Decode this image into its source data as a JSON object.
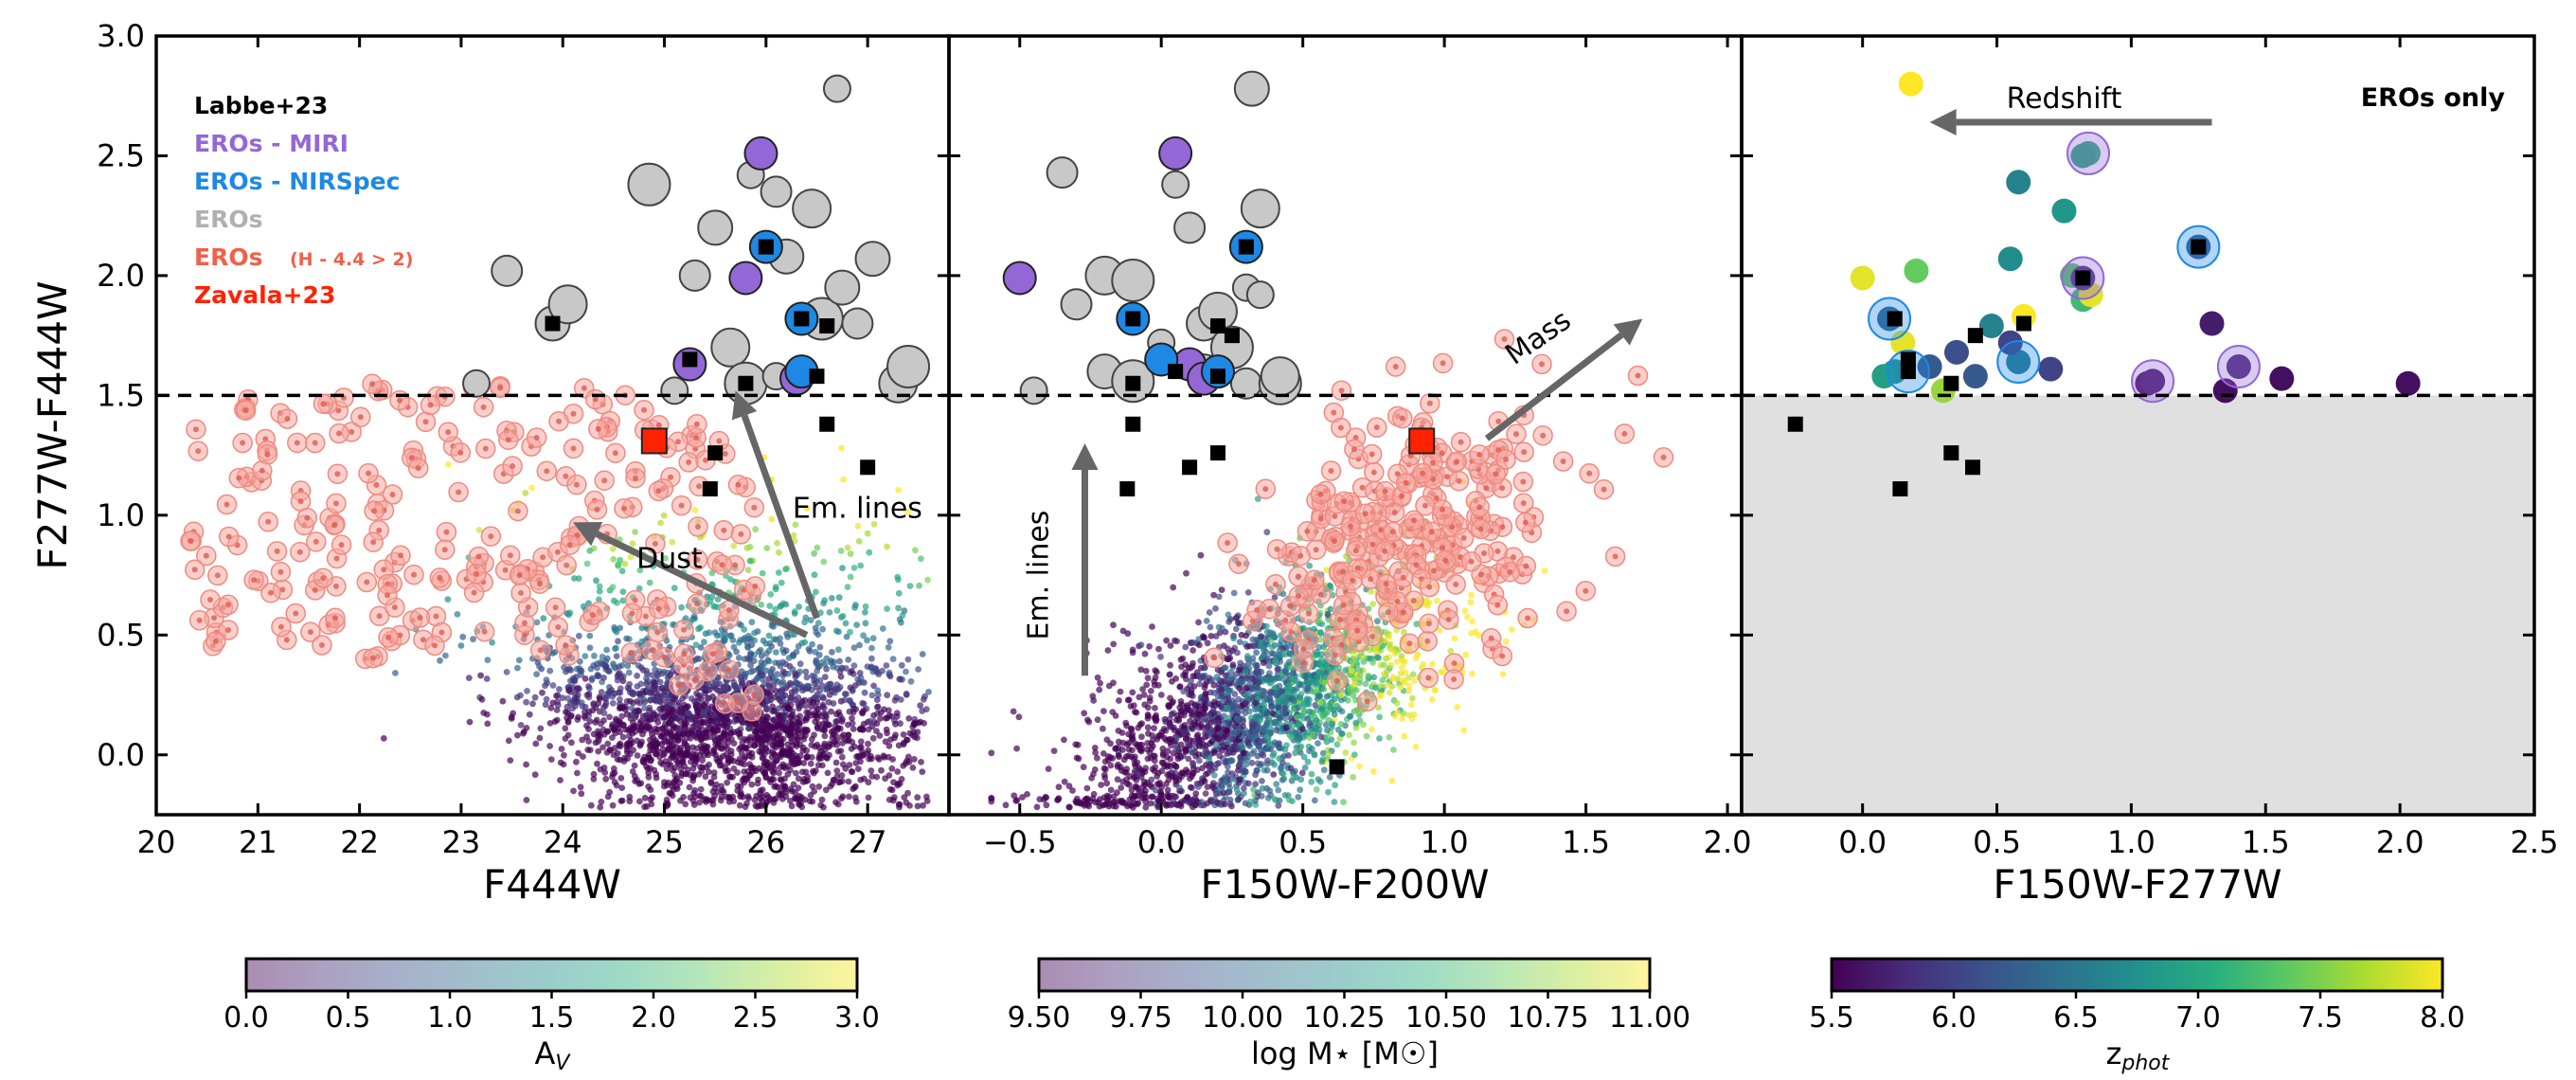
{
  "chart_data": [
    {
      "type": "scatter",
      "panel": "left",
      "xlabel": "F444W",
      "ylabel": "F277W-F444W",
      "xlim": [
        20,
        27.8
      ],
      "ylim": [
        -0.25,
        3.0
      ],
      "xticks": [
        "20",
        "21",
        "22",
        "23",
        "24",
        "25",
        "26",
        "27"
      ],
      "yticks": [
        "0.0",
        "0.5",
        "1.0",
        "1.5",
        "2.0",
        "2.5",
        "3.0"
      ],
      "threshold_y": 1.5,
      "legend": [
        {
          "label": "Labbe+23",
          "color": "#000000"
        },
        {
          "label": "EROs - MIRI",
          "color": "#9467d6"
        },
        {
          "label": "EROs - NIRSpec",
          "color": "#1e88e5"
        },
        {
          "label": "EROs",
          "color": "#b0b0b0"
        },
        {
          "label": "EROs",
          "suffix": "(H - 4.4 > 2)",
          "color": "#f0604a"
        },
        {
          "label": "Zavala+23",
          "color": "#ff2200"
        }
      ],
      "annotations": [
        {
          "text": "Dust",
          "arrow": {
            "from": [
              26.4,
              0.5
            ],
            "to": [
              24.1,
              0.97
            ]
          },
          "at": [
            25.05,
            0.78
          ]
        },
        {
          "text": "Em. lines",
          "arrow": {
            "from": [
              26.5,
              0.57
            ],
            "to": [
              25.7,
              1.52
            ]
          },
          "at": [
            26.9,
            0.99
          ]
        }
      ],
      "labbe": [
        [
          23.9,
          1.8
        ],
        [
          25.25,
          1.65
        ],
        [
          25.8,
          1.55
        ],
        [
          26.0,
          2.12
        ],
        [
          26.35,
          1.82
        ],
        [
          26.6,
          1.79
        ],
        [
          26.5,
          1.58
        ],
        [
          25.5,
          1.26
        ],
        [
          25.45,
          1.11
        ],
        [
          26.6,
          1.38
        ],
        [
          27.0,
          1.2
        ]
      ],
      "eros_gray": [
        [
          23.15,
          1.55
        ],
        [
          23.45,
          2.02
        ],
        [
          23.9,
          1.8
        ],
        [
          24.05,
          1.88
        ],
        [
          24.85,
          2.38
        ],
        [
          25.1,
          1.52
        ],
        [
          25.3,
          2.0
        ],
        [
          25.5,
          2.2
        ],
        [
          25.65,
          1.7
        ],
        [
          25.8,
          1.55
        ],
        [
          25.85,
          2.42
        ],
        [
          26.1,
          2.35
        ],
        [
          26.2,
          2.08
        ],
        [
          26.45,
          2.28
        ],
        [
          26.55,
          1.82
        ],
        [
          26.7,
          2.78
        ],
        [
          26.9,
          1.8
        ],
        [
          27.05,
          2.07
        ],
        [
          27.3,
          1.55
        ],
        [
          27.4,
          1.62
        ],
        [
          26.1,
          1.58
        ],
        [
          26.35,
          1.6
        ],
        [
          26.75,
          1.95
        ]
      ],
      "eros_miri": [
        [
          25.95,
          2.51
        ],
        [
          25.25,
          1.63
        ],
        [
          25.8,
          1.99
        ],
        [
          26.3,
          1.57
        ]
      ],
      "eros_nirspec": [
        [
          26.0,
          2.12
        ],
        [
          26.35,
          1.82
        ],
        [
          26.35,
          1.6
        ]
      ],
      "zavala": [
        [
          24.9,
          1.31
        ]
      ],
      "colorbar": {
        "label": "A_V",
        "ticks": [
          "0.0",
          "0.5",
          "1.0",
          "1.5",
          "2.0",
          "2.5",
          "3.0"
        ],
        "range": [
          0,
          3
        ],
        "cmap": "viridis",
        "alpha": 0.45
      }
    },
    {
      "type": "scatter",
      "panel": "middle",
      "xlabel": "F150W-F200W",
      "xlim": [
        -0.75,
        2.05
      ],
      "ylim": [
        -0.25,
        3.0
      ],
      "xticks": [
        "−0.5",
        "0.0",
        "0.5",
        "1.0",
        "1.5",
        "2.0"
      ],
      "threshold_y": 1.5,
      "annotations": [
        {
          "text": "Mass",
          "arrow": {
            "from": [
              1.15,
              1.32
            ],
            "to": [
              1.7,
              1.82
            ]
          },
          "at": [
            1.35,
            1.71
          ]
        },
        {
          "text": "Em. lines",
          "arrow": {
            "from": [
              -0.27,
              0.33
            ],
            "to": [
              -0.27,
              1.3
            ]
          },
          "at": [
            -0.4,
            0.75
          ]
        }
      ],
      "labbe": [
        [
          -0.1,
          1.38
        ],
        [
          -0.12,
          1.11
        ],
        [
          0.1,
          1.2
        ],
        [
          0.2,
          1.26
        ],
        [
          0.62,
          -0.05
        ],
        [
          0.2,
          1.79
        ],
        [
          0.25,
          1.75
        ],
        [
          0.3,
          2.12
        ],
        [
          -0.1,
          1.55
        ],
        [
          -0.1,
          1.82
        ],
        [
          0.05,
          1.6
        ],
        [
          0.2,
          1.58
        ]
      ],
      "eros_gray": [
        [
          -0.45,
          1.52
        ],
        [
          -0.3,
          1.88
        ],
        [
          -0.2,
          1.6
        ],
        [
          -0.2,
          2.0
        ],
        [
          -0.1,
          1.98
        ],
        [
          0.05,
          2.38
        ],
        [
          0.1,
          2.2
        ],
        [
          0.15,
          1.8
        ],
        [
          0.2,
          1.85
        ],
        [
          0.25,
          1.7
        ],
        [
          0.3,
          1.95
        ],
        [
          0.3,
          1.55
        ],
        [
          0.32,
          2.78
        ],
        [
          0.35,
          2.28
        ],
        [
          0.42,
          1.55
        ],
        [
          0.35,
          1.92
        ],
        [
          -0.35,
          2.43
        ],
        [
          0.15,
          1.6
        ],
        [
          0.42,
          1.58
        ],
        [
          -0.1,
          1.56
        ],
        [
          0.0,
          1.72
        ]
      ],
      "eros_miri": [
        [
          0.05,
          2.51
        ],
        [
          -0.5,
          1.99
        ],
        [
          0.1,
          1.63
        ],
        [
          0.15,
          1.57
        ]
      ],
      "eros_nirspec": [
        [
          0.3,
          2.12
        ],
        [
          -0.1,
          1.82
        ],
        [
          0.2,
          1.6
        ],
        [
          0.0,
          1.65
        ]
      ],
      "zavala": [
        [
          0.92,
          1.31
        ]
      ],
      "colorbar": {
        "label": "log M⋆ [M☉]",
        "ticks": [
          "9.50",
          "9.75",
          "10.00",
          "10.25",
          "10.50",
          "10.75",
          "11.00"
        ],
        "range": [
          9.5,
          11.0
        ],
        "cmap": "viridis",
        "alpha": 0.45
      }
    },
    {
      "type": "scatter",
      "panel": "right",
      "xlabel": "F150W-F277W",
      "xlim": [
        -0.45,
        2.5
      ],
      "ylim": [
        -0.25,
        3.0
      ],
      "xticks": [
        "0.0",
        "0.5",
        "1.0",
        "1.5",
        "2.0",
        "2.5"
      ],
      "threshold_y": 1.5,
      "panel_label": "EROs only",
      "annotations": [
        {
          "text": "Redshift",
          "arrow": {
            "from": [
              1.3,
              2.64
            ],
            "to": [
              0.25,
              2.64
            ]
          },
          "at": [
            0.75,
            2.7
          ]
        }
      ],
      "labbe": [
        [
          -0.25,
          1.38
        ],
        [
          0.14,
          1.11
        ],
        [
          0.33,
          1.26
        ],
        [
          0.41,
          1.2
        ],
        [
          0.12,
          1.82
        ],
        [
          0.17,
          1.65
        ],
        [
          0.33,
          1.55
        ],
        [
          0.42,
          1.75
        ],
        [
          0.6,
          1.8
        ],
        [
          0.82,
          1.99
        ],
        [
          1.25,
          2.12
        ],
        [
          0.17,
          1.6
        ]
      ],
      "eros": [
        {
          "x": 0.0,
          "y": 1.99,
          "z": 7.9
        },
        {
          "x": 0.1,
          "y": 1.82,
          "z": 6.3
        },
        {
          "x": 0.12,
          "y": 1.6,
          "z": 6.8
        },
        {
          "x": 0.15,
          "y": 1.72,
          "z": 7.9
        },
        {
          "x": 0.2,
          "y": 2.02,
          "z": 7.4
        },
        {
          "x": 0.08,
          "y": 1.58,
          "z": 6.9
        },
        {
          "x": 0.25,
          "y": 1.62,
          "z": 6.2
        },
        {
          "x": 0.3,
          "y": 1.52,
          "z": 7.6
        },
        {
          "x": 0.35,
          "y": 1.68,
          "z": 6.1
        },
        {
          "x": 0.42,
          "y": 1.58,
          "z": 6.2
        },
        {
          "x": 0.48,
          "y": 1.79,
          "z": 6.6
        },
        {
          "x": 0.55,
          "y": 2.07,
          "z": 6.7
        },
        {
          "x": 0.58,
          "y": 1.64,
          "z": 6.5
        },
        {
          "x": 0.6,
          "y": 1.83,
          "z": 8.0
        },
        {
          "x": 0.55,
          "y": 1.72,
          "z": 6.0
        },
        {
          "x": 0.58,
          "y": 2.39,
          "z": 6.6
        },
        {
          "x": 0.7,
          "y": 1.61,
          "z": 6.0
        },
        {
          "x": 0.75,
          "y": 2.27,
          "z": 6.8
        },
        {
          "x": 0.78,
          "y": 2.0,
          "z": 7.3
        },
        {
          "x": 0.82,
          "y": 1.9,
          "z": 7.2
        },
        {
          "x": 0.85,
          "y": 1.92,
          "z": 7.9
        },
        {
          "x": 0.82,
          "y": 1.99,
          "z": 5.9
        },
        {
          "x": 0.84,
          "y": 2.51,
          "z": 7.1
        },
        {
          "x": 1.06,
          "y": 1.55,
          "z": 5.6
        },
        {
          "x": 1.08,
          "y": 1.56,
          "z": 5.7
        },
        {
          "x": 1.25,
          "y": 2.12,
          "z": 6.2
        },
        {
          "x": 1.3,
          "y": 1.8,
          "z": 5.7
        },
        {
          "x": 1.35,
          "y": 1.52,
          "z": 5.6
        },
        {
          "x": 1.4,
          "y": 1.62,
          "z": 5.8
        },
        {
          "x": 1.56,
          "y": 1.57,
          "z": 5.6
        },
        {
          "x": 2.03,
          "y": 1.55,
          "z": 5.6
        },
        {
          "x": 0.82,
          "y": 2.5,
          "z": 7.0
        },
        {
          "x": 0.18,
          "y": 2.8,
          "z": 8.0
        }
      ],
      "miri_halo": [
        [
          0.82,
          1.99
        ],
        [
          0.84,
          2.51
        ],
        [
          1.08,
          1.56
        ],
        [
          1.4,
          1.62
        ]
      ],
      "nirspec_halo": [
        [
          1.25,
          2.12
        ],
        [
          0.1,
          1.82
        ],
        [
          0.17,
          1.6
        ],
        [
          0.58,
          1.64
        ]
      ],
      "colorbar": {
        "label": "z_phot",
        "ticks": [
          "5.5",
          "6.0",
          "6.5",
          "7.0",
          "7.5",
          "8.0"
        ],
        "range": [
          5.5,
          8.0
        ],
        "cmap": "viridis",
        "alpha": 1.0
      }
    }
  ]
}
